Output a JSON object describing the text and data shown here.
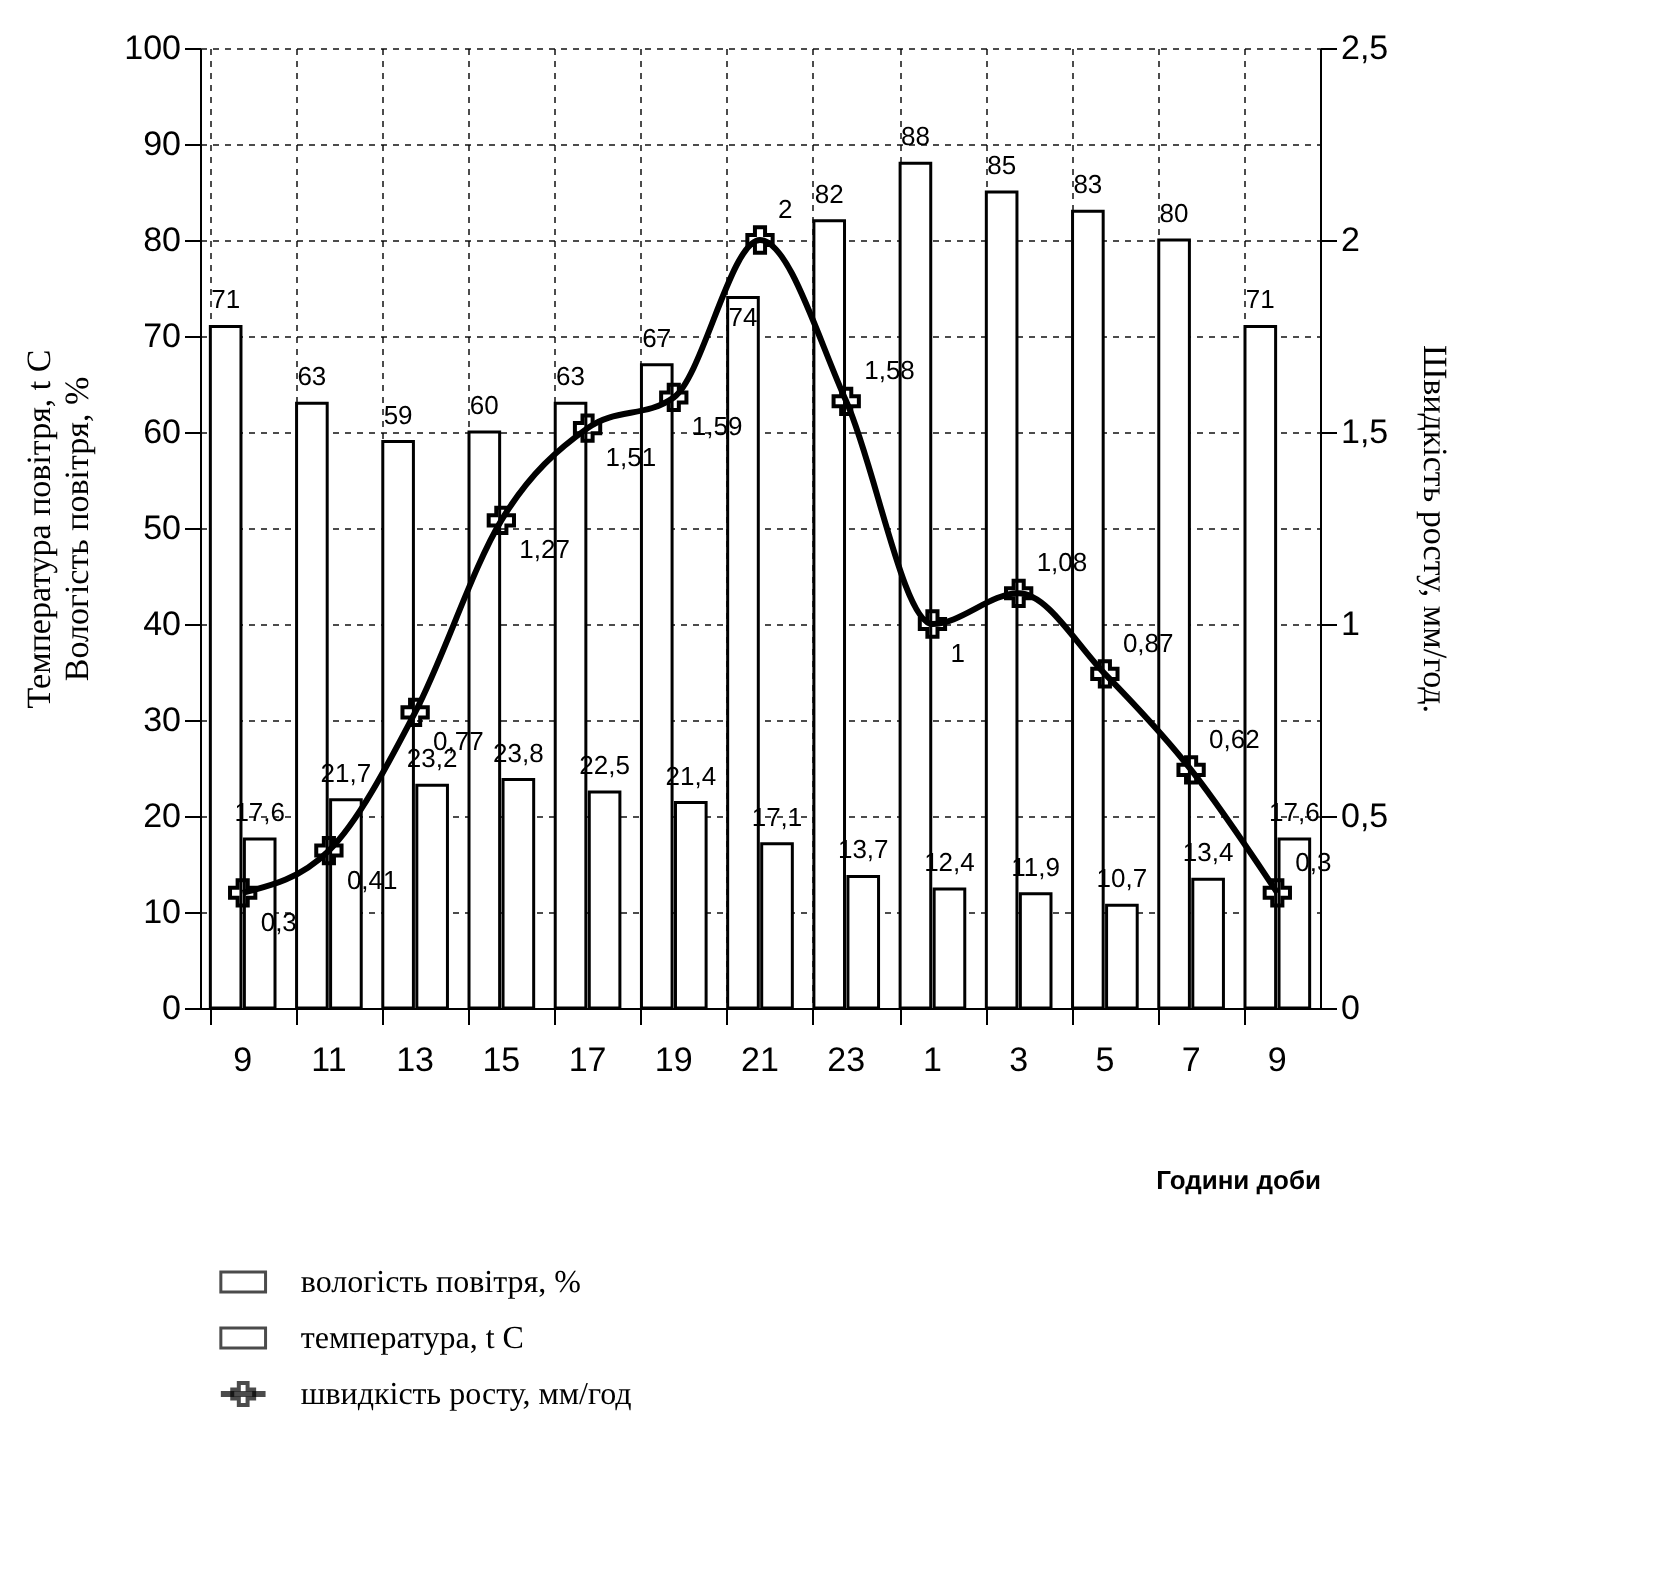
{
  "chart_data": {
    "type": "bar",
    "xlabel": "Години доби",
    "ylabel": "Вологість повітря, %",
    "y2label": "Швидкість росту, мм/год.",
    "annotations": [
      "Температура повітря, t C"
    ],
    "categories": [
      "9",
      "11",
      "13",
      "15",
      "17",
      "19",
      "21",
      "23",
      "1",
      "3",
      "5",
      "7",
      "9"
    ],
    "series": [
      {
        "name": "вологість повітря, %",
        "type": "bar",
        "color": "#ffffff",
        "values": [
          71,
          63,
          59,
          60,
          63,
          67,
          74,
          82,
          88,
          85,
          83,
          80,
          71
        ],
        "value_labels": [
          "71",
          "63",
          "59",
          "60",
          "63",
          "67",
          "74",
          "82",
          "88",
          "85",
          "83",
          "80",
          "71"
        ]
      },
      {
        "name": "температура, t C",
        "type": "bar",
        "color": "#ffffff",
        "values": [
          17.6,
          21.7,
          23.2,
          23.8,
          22.5,
          21.4,
          17.1,
          13.7,
          12.4,
          11.9,
          10.7,
          13.4,
          17.6
        ],
        "value_labels": [
          "17,6",
          "21,7",
          "23,2",
          "23,8",
          "22,5",
          "21,4",
          "17,1",
          "13,7",
          "12,4",
          "11,9",
          "10,7",
          "13,4",
          "17,6"
        ]
      },
      {
        "name": "швидкість росту, мм/год",
        "type": "line",
        "axis": "y2",
        "color": "#000000",
        "values": [
          0.3,
          0.41,
          0.77,
          1.27,
          1.51,
          1.59,
          2,
          1.58,
          1,
          1.08,
          0.87,
          0.62,
          0.3
        ],
        "value_labels": [
          "0,3",
          "0,41",
          "0,77",
          "1,27",
          "1,51",
          "1,59",
          "2",
          "1,58",
          "1",
          "1,08",
          "0,87",
          "0,62",
          "0,3"
        ]
      }
    ],
    "ylim": [
      0,
      100
    ],
    "yticks": [
      0,
      10,
      20,
      30,
      40,
      50,
      60,
      70,
      80,
      90,
      100
    ],
    "y2lim": [
      0,
      2.5
    ],
    "y2ticks": [
      0,
      {
        "value": 0.5,
        "label": "0,5"
      },
      1,
      {
        "value": 1.5,
        "label": "1,5"
      },
      2,
      {
        "value": 2.5,
        "label": "2,5"
      }
    ],
    "grid": true,
    "legend": "bottom",
    "marker": "cross",
    "line_style": "solid"
  }
}
